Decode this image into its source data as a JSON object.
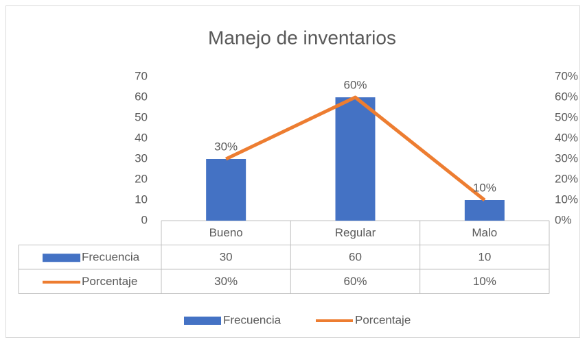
{
  "chart_data": {
    "type": "bar",
    "title": "Manejo de inventarios",
    "categories": [
      "Bueno",
      "Regular",
      "Malo"
    ],
    "series": [
      {
        "name": "Frecuencia",
        "type": "bar",
        "color": "#4472c4",
        "values": [
          30,
          60,
          10
        ]
      },
      {
        "name": "Porcentaje",
        "type": "line",
        "axis": "y2",
        "color": "#ed7d31",
        "values": [
          30,
          60,
          10
        ],
        "value_labels": [
          "30%",
          "60%",
          "10%"
        ]
      }
    ],
    "ylim": [
      0,
      70
    ],
    "yticks": [
      0,
      10,
      20,
      30,
      40,
      50,
      60,
      70
    ],
    "y2lim": [
      0,
      70
    ],
    "y2ticks": [
      {
        "value": 0,
        "label": "0%"
      },
      {
        "value": 10,
        "label": "10%"
      },
      {
        "value": 20,
        "label": "20%"
      },
      {
        "value": 30,
        "label": "30%"
      },
      {
        "value": 40,
        "label": "40%"
      },
      {
        "value": 50,
        "label": "50%"
      },
      {
        "value": 60,
        "label": "60%"
      },
      {
        "value": 70,
        "label": "70%"
      }
    ],
    "data_table": true,
    "legend": "bottom"
  }
}
